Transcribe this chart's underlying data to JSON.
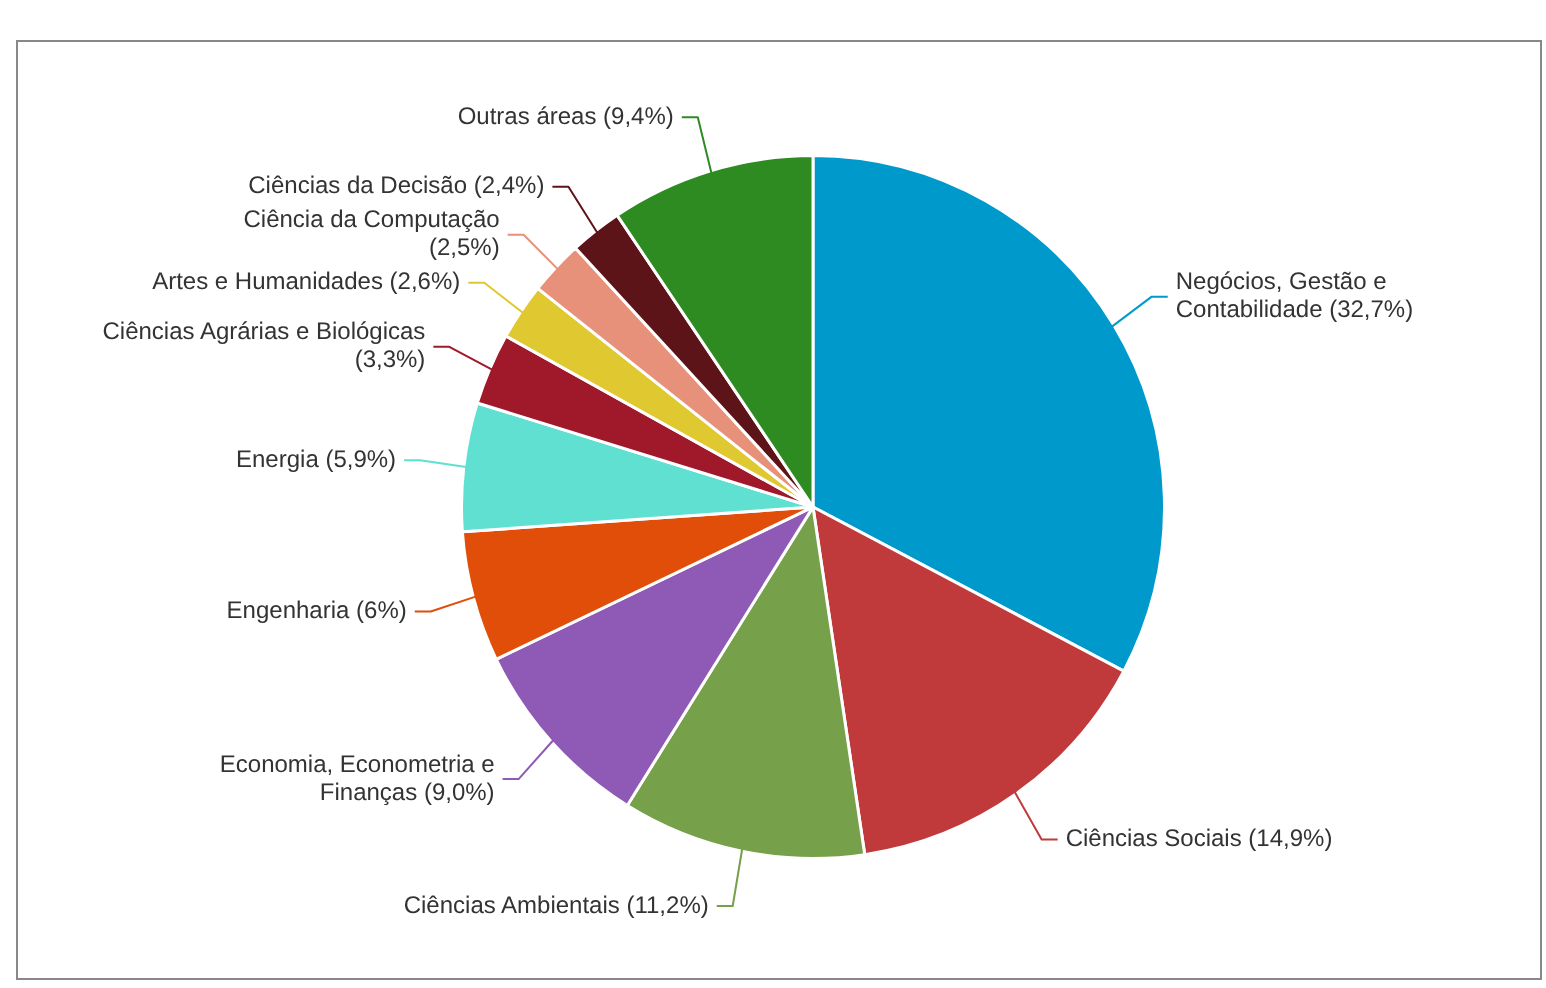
{
  "chart_data": {
    "type": "pie",
    "categories": [
      "Negócios, Gestão e Contabilidade",
      "Ciências Sociais",
      "Ciências Ambientais",
      "Economia, Econometria e Finanças",
      "Engenharia",
      "Energia",
      "Ciências Agrárias e Biológicas",
      "Artes e Humanidades",
      "Ciência da Computação",
      "Ciências da Decisão",
      "Outras áreas"
    ],
    "values": [
      32.7,
      14.9,
      11.2,
      9.0,
      6,
      5.9,
      3.3,
      2.6,
      2.5,
      2.4,
      9.4
    ],
    "value_labels": [
      "(32,7%)",
      "(14,9%)",
      "(11,2%)",
      "(9,0%)",
      "(6%)",
      "(5,9%)",
      "(3,3%)",
      "(2,6%)",
      "(2,5%)",
      "(2,4%)",
      "(9,4%)"
    ],
    "colors": [
      "#0099cc",
      "#c0393b",
      "#77a04a",
      "#8e5ab5",
      "#e04e0a",
      "#5fe0d0",
      "#a0192a",
      "#e0c830",
      "#e8917a",
      "#5c1418",
      "#2e8b22"
    ],
    "legend": false
  }
}
